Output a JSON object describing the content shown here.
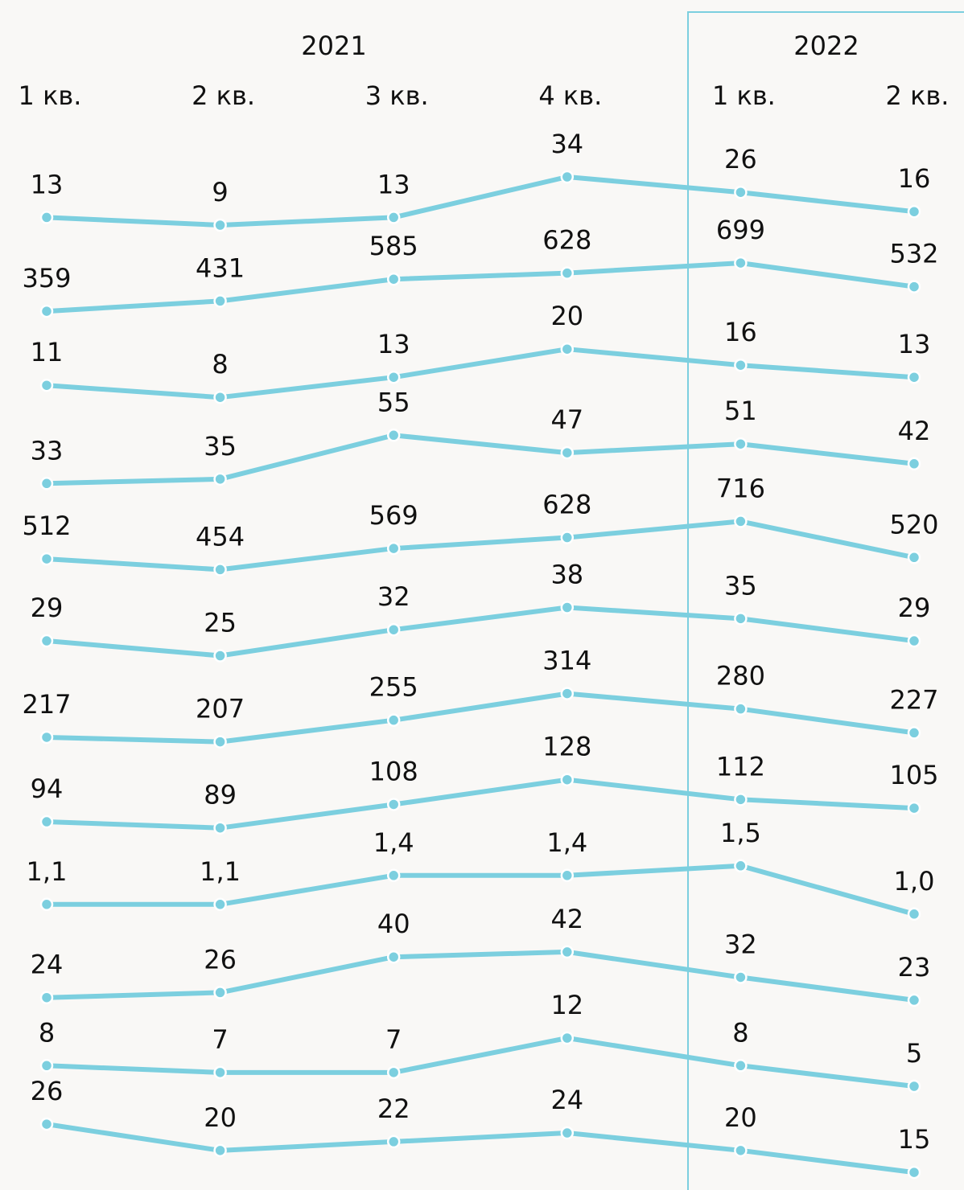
{
  "chart_data": {
    "type": "line",
    "years": [
      "2021",
      "2022"
    ],
    "categories": [
      "1 кв.",
      "2 кв.",
      "3 кв.",
      "4 кв.",
      "1 кв.",
      "2 кв."
    ],
    "color": "#7ccfdf",
    "series": [
      {
        "color": "#7ccfdf",
        "values": [
          13,
          9,
          13,
          34,
          26,
          16
        ]
      },
      {
        "color": "#7ccfdf",
        "values": [
          359,
          431,
          585,
          628,
          699,
          532
        ]
      },
      {
        "color": "#7ccfdf",
        "values": [
          11,
          8,
          13,
          20,
          16,
          13
        ]
      },
      {
        "color": "#7ccfdf",
        "values": [
          33,
          35,
          55,
          47,
          51,
          42
        ]
      },
      {
        "color": "#7ccfdf",
        "values": [
          512,
          454,
          569,
          628,
          716,
          520
        ]
      },
      {
        "color": "#7ccfdf",
        "values": [
          29,
          25,
          32,
          38,
          35,
          29
        ]
      },
      {
        "color": "#7ccfdf",
        "values": [
          217,
          207,
          255,
          314,
          280,
          227
        ]
      },
      {
        "color": "#7ccfdf",
        "values": [
          94,
          89,
          108,
          128,
          112,
          105
        ]
      },
      {
        "color": "#7ccfdf",
        "values": [
          1.1,
          1.1,
          1.4,
          1.4,
          1.5,
          1.0
        ],
        "value_labels": [
          "1,1",
          "1,1",
          "1,4",
          "1,4",
          "1,5",
          "1,0"
        ]
      },
      {
        "color": "#7ccfdf",
        "values": [
          24,
          26,
          40,
          42,
          32,
          23
        ]
      },
      {
        "color": "#7ccfdf",
        "values": [
          8,
          7,
          7,
          12,
          8,
          5
        ]
      },
      {
        "color": "#7ccfdf",
        "values": [
          26,
          20,
          22,
          24,
          20,
          15
        ]
      }
    ]
  }
}
